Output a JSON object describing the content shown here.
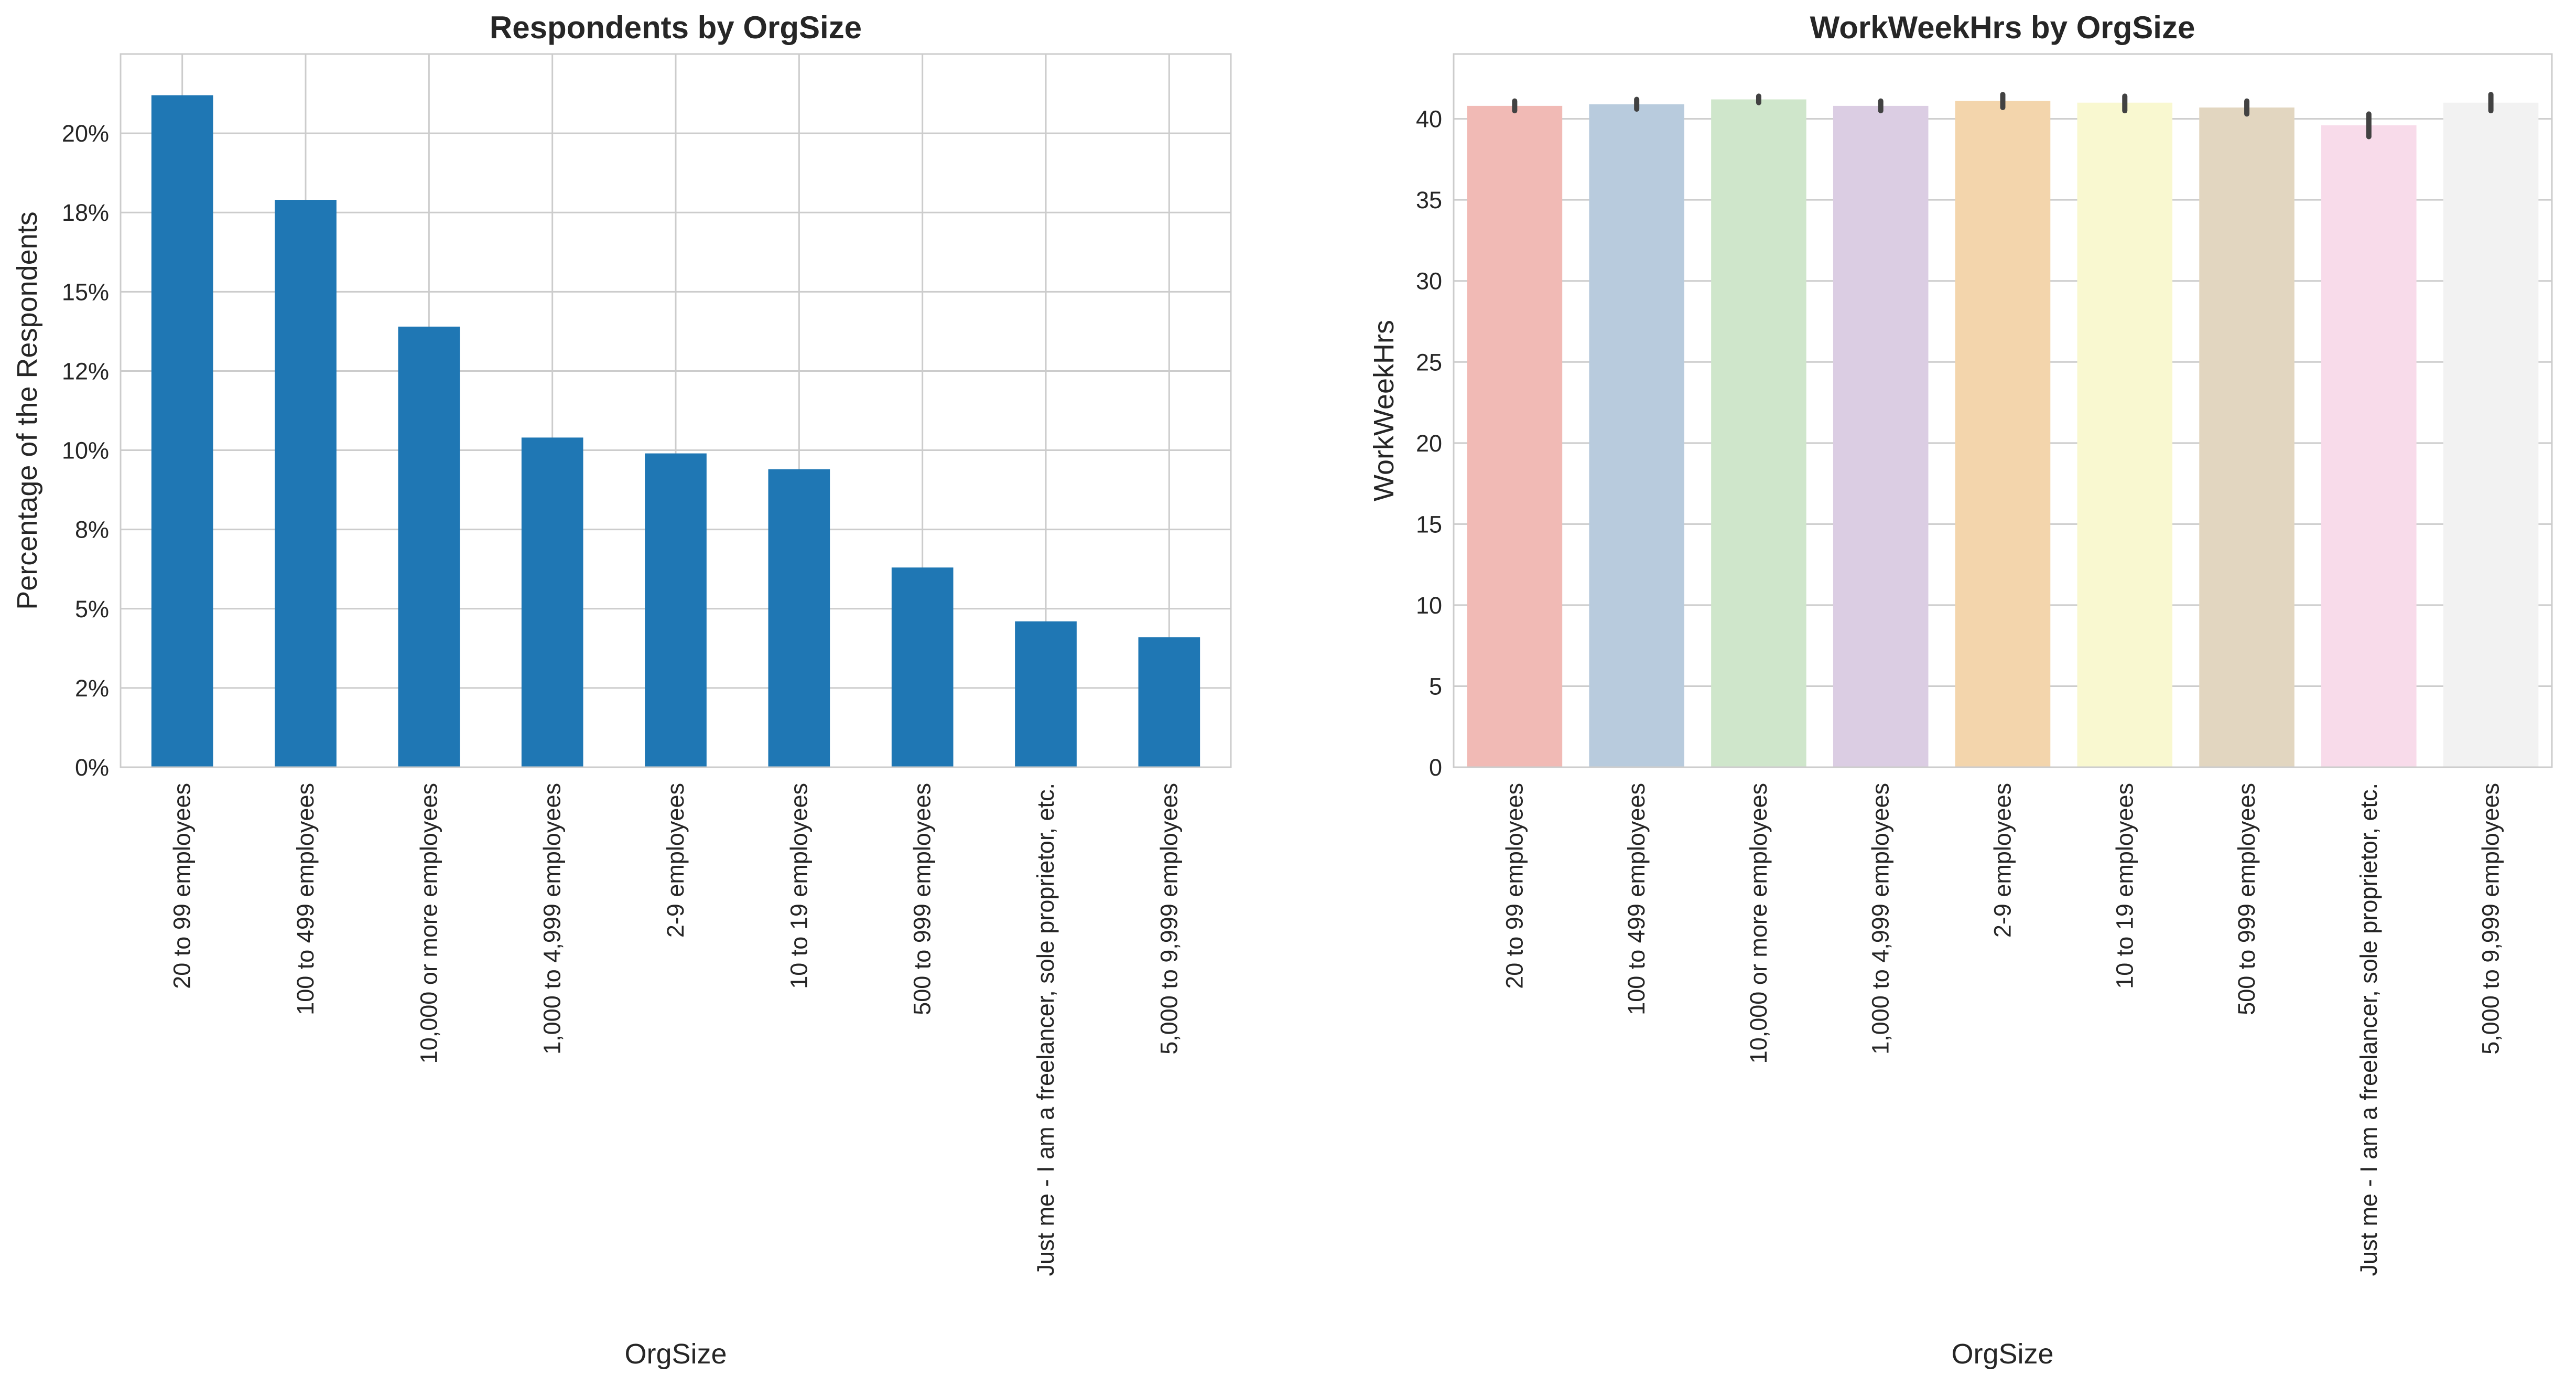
{
  "chart_data": [
    {
      "type": "bar",
      "title": "Respondents by OrgSize",
      "xlabel": "OrgSize",
      "ylabel": "Percentage of the Respondents",
      "ylim": [
        0,
        0.225
      ],
      "yticks": [
        0,
        0.025,
        0.05,
        0.075,
        0.1,
        0.125,
        0.15,
        0.175,
        0.2
      ],
      "ytick_labels": [
        "0%",
        "2%",
        "5%",
        "8%",
        "10%",
        "12%",
        "15%",
        "18%",
        "20%"
      ],
      "grid": true,
      "color": "#1f77b4",
      "categories": [
        "20 to 99 employees",
        "100 to 499 employees",
        "10,000 or more employees",
        "1,000 to 4,999 employees",
        "2-9 employees",
        "10 to 19 employees",
        "500 to 999 employees",
        "Just me - I am a freelancer, sole proprietor, etc.",
        "5,000 to 9,999 employees"
      ],
      "values": [
        0.212,
        0.179,
        0.139,
        0.104,
        0.099,
        0.094,
        0.063,
        0.046,
        0.041
      ]
    },
    {
      "type": "bar",
      "title": "WorkWeekHrs by OrgSize",
      "xlabel": "OrgSize",
      "ylabel": "WorkWeekHrs",
      "ylim": [
        0,
        44
      ],
      "yticks": [
        0,
        5,
        10,
        15,
        20,
        25,
        30,
        35,
        40
      ],
      "ytick_labels": [
        "0",
        "5",
        "10",
        "15",
        "20",
        "25",
        "30",
        "35",
        "40"
      ],
      "grid": true,
      "categories": [
        "20 to 99 employees",
        "100 to 499 employees",
        "10,000 or more employees",
        "1,000 to 4,999 employees",
        "2-9 employees",
        "10 to 19 employees",
        "500 to 999 employees",
        "Just me - I am a freelancer, sole proprietor, etc.",
        "5,000 to 9,999 employees"
      ],
      "values": [
        40.8,
        40.9,
        41.2,
        40.8,
        41.1,
        41.0,
        40.7,
        39.6,
        41.0
      ],
      "error_low": [
        40.5,
        40.6,
        41.0,
        40.5,
        40.7,
        40.5,
        40.3,
        38.9,
        40.5
      ],
      "error_high": [
        41.1,
        41.2,
        41.4,
        41.1,
        41.5,
        41.4,
        41.1,
        40.3,
        41.5
      ],
      "colors": [
        "#f1bab5",
        "#b8cbdd",
        "#cfe6cb",
        "#dbcde3",
        "#f3d5ac",
        "#f9f8d0",
        "#e2d6c0",
        "#f8dbea",
        "#f2f2f2"
      ]
    }
  ]
}
